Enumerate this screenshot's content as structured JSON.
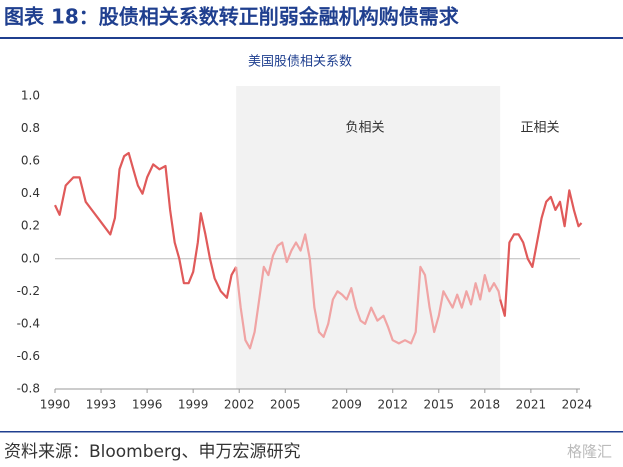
{
  "header": {
    "title": "图表 18：股债相关系数转正削弱金融机构购债需求"
  },
  "chart_data": {
    "type": "line",
    "title": "美国股债相关系数",
    "annotations": [
      "负相关",
      "正相关"
    ],
    "shade_x": [
      2001.8,
      2019.0
    ],
    "xlim": [
      1990,
      2024.2
    ],
    "xticks": [
      1990,
      1993,
      1996,
      1999,
      2002,
      2005,
      2009,
      2012,
      2015,
      2018,
      2021,
      2024
    ],
    "ylim": [
      -0.8,
      1.0
    ],
    "yticks": [
      {
        "value": -0.8,
        "label": "-0.8"
      },
      {
        "value": -0.6,
        "label": "-0.6"
      },
      {
        "value": -0.4,
        "label": "-0.4"
      },
      {
        "value": -0.2,
        "label": "-0.2"
      },
      {
        "value": 0,
        "label": "0.0"
      },
      {
        "value": 0.2,
        "label": "0.2"
      },
      {
        "value": 0.4,
        "label": "0.4"
      },
      {
        "value": 0.6,
        "label": "0.6"
      },
      {
        "value": 0.8,
        "label": "0.8"
      },
      {
        "value": 1,
        "label": "1.0"
      }
    ],
    "series": [
      {
        "color": "#e05a5a",
        "x": [
          1990.0,
          1990.3,
          1990.7,
          1991.2,
          1991.6,
          1992.0,
          1992.4,
          1992.8,
          1993.2,
          1993.6,
          1993.9,
          1994.2,
          1994.5,
          1994.8,
          1995.1,
          1995.4,
          1995.7,
          1996.0,
          1996.4,
          1996.8,
          1997.2,
          1997.5,
          1997.8,
          1998.1,
          1998.4,
          1998.7,
          1999.0,
          1999.3,
          1999.5,
          1999.8,
          2000.1,
          2000.4,
          2000.8,
          2001.2,
          2001.5,
          2001.8
        ],
        "values": [
          0.33,
          0.27,
          0.45,
          0.5,
          0.5,
          0.35,
          0.3,
          0.25,
          0.2,
          0.15,
          0.25,
          0.55,
          0.63,
          0.65,
          0.55,
          0.45,
          0.4,
          0.5,
          0.58,
          0.55,
          0.57,
          0.3,
          0.1,
          0.0,
          -0.15,
          -0.15,
          -0.08,
          0.1,
          0.28,
          0.15,
          0.0,
          -0.12,
          -0.2,
          -0.24,
          -0.1,
          -0.05
        ]
      },
      {
        "color": "#f0a4a4",
        "x": [
          2001.8,
          2002.1,
          2002.4,
          2002.7,
          2003.0,
          2003.3,
          2003.6,
          2003.9,
          2004.2,
          2004.5,
          2004.8,
          2005.1,
          2005.4,
          2005.7,
          2006.0,
          2006.3,
          2006.6,
          2006.9,
          2007.2,
          2007.5,
          2007.8,
          2008.1,
          2008.4,
          2008.7,
          2009.0,
          2009.3,
          2009.6,
          2009.9,
          2010.2,
          2010.6,
          2011.0,
          2011.4,
          2011.7,
          2012.0,
          2012.4,
          2012.8,
          2013.2,
          2013.5,
          2013.8,
          2014.1,
          2014.4,
          2014.7,
          2015.0,
          2015.3,
          2015.6,
          2015.9,
          2016.2,
          2016.5,
          2016.8,
          2017.1,
          2017.4,
          2017.7,
          2018.0,
          2018.3,
          2018.6,
          2018.9,
          2019.0
        ],
        "values": [
          -0.05,
          -0.3,
          -0.5,
          -0.55,
          -0.45,
          -0.25,
          -0.05,
          -0.1,
          0.02,
          0.08,
          0.1,
          -0.02,
          0.05,
          0.1,
          0.05,
          0.15,
          0.0,
          -0.3,
          -0.45,
          -0.48,
          -0.4,
          -0.25,
          -0.2,
          -0.22,
          -0.25,
          -0.18,
          -0.3,
          -0.38,
          -0.4,
          -0.3,
          -0.38,
          -0.35,
          -0.42,
          -0.5,
          -0.52,
          -0.5,
          -0.52,
          -0.45,
          -0.05,
          -0.1,
          -0.3,
          -0.45,
          -0.35,
          -0.2,
          -0.25,
          -0.3,
          -0.22,
          -0.3,
          -0.2,
          -0.28,
          -0.15,
          -0.25,
          -0.1,
          -0.2,
          -0.15,
          -0.2,
          -0.25
        ]
      },
      {
        "color": "#e05a5a",
        "x": [
          2019.0,
          2019.3,
          2019.6,
          2019.9,
          2020.2,
          2020.5,
          2020.8,
          2021.1,
          2021.4,
          2021.7,
          2022.0,
          2022.3,
          2022.6,
          2022.9,
          2023.2,
          2023.5,
          2023.8,
          2024.1,
          2024.3
        ],
        "values": [
          -0.25,
          -0.35,
          0.1,
          0.15,
          0.15,
          0.1,
          0.0,
          -0.05,
          0.1,
          0.25,
          0.35,
          0.38,
          0.3,
          0.35,
          0.2,
          0.42,
          0.3,
          0.2,
          0.22
        ]
      }
    ]
  },
  "footer": {
    "source": "资料来源：Bloomberg、申万宏源研究",
    "watermark": "格隆汇"
  }
}
